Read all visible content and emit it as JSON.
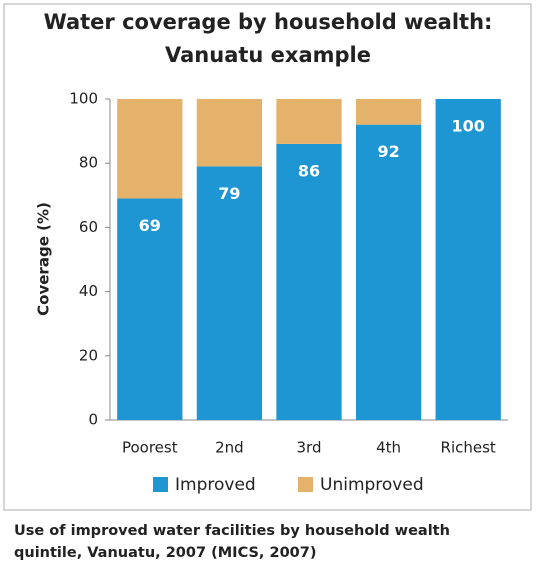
{
  "chart_data": {
    "type": "stacked_bar",
    "title": [
      "Water coverage by household wealth:",
      "Vanuatu example"
    ],
    "y_label": "Coverage (%)",
    "categories": [
      "Poorest",
      "2nd",
      "3rd",
      "4th",
      "Richest"
    ],
    "series": [
      {
        "name": "Improved",
        "color": "#1e96d3",
        "values": [
          69,
          79,
          86,
          92,
          100
        ]
      },
      {
        "name": "Unimproved",
        "color": "#e5b26c",
        "values": [
          31,
          21,
          14,
          8,
          0
        ]
      }
    ],
    "ylim": [
      0,
      100
    ],
    "yticks": [
      0,
      20,
      40,
      60,
      80,
      100
    ],
    "caption": [
      "Use of improved water facilities by household wealth",
      "quintile, Vanuatu, 2007 (MICS, 2007)"
    ]
  }
}
